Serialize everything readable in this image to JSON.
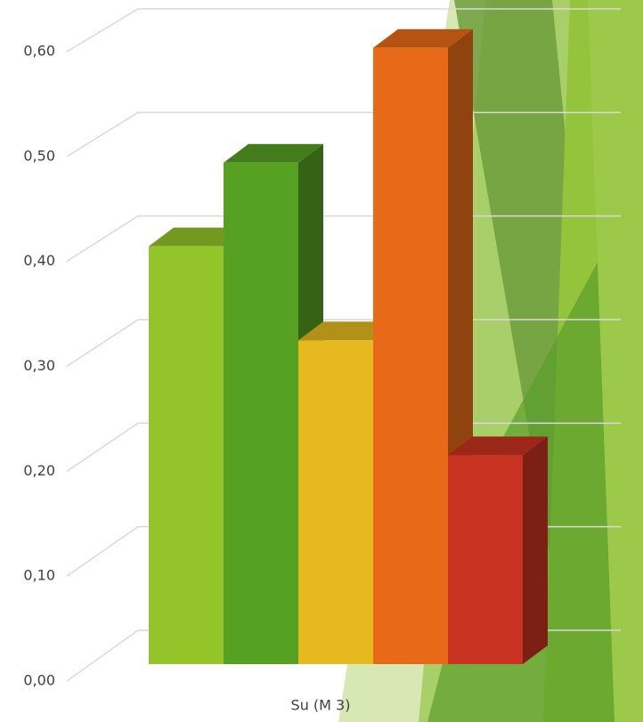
{
  "chart_data": {
    "type": "bar3d",
    "categories": [
      "Su (M 3)"
    ],
    "series": [
      {
        "color": "#93c42a",
        "values": [
          0.4
        ]
      },
      {
        "color": "#56a022",
        "values": [
          0.48
        ]
      },
      {
        "color": "#e5b91f",
        "values": [
          0.31
        ]
      },
      {
        "color": "#e86a18",
        "values": [
          0.59
        ]
      },
      {
        "color": "#c83220",
        "values": [
          0.2
        ]
      }
    ],
    "ylim": [
      0,
      0.6
    ],
    "yticks": [
      {
        "value": 0,
        "label": "0,00"
      },
      {
        "value": 0.1,
        "label": "0,10"
      },
      {
        "value": 0.2,
        "label": "0,20"
      },
      {
        "value": 0.3,
        "label": "0,30"
      },
      {
        "value": 0.4,
        "label": "0,40"
      },
      {
        "value": 0.5,
        "label": "0,50"
      },
      {
        "value": 0.6,
        "label": "0,60"
      }
    ],
    "grid": true
  }
}
